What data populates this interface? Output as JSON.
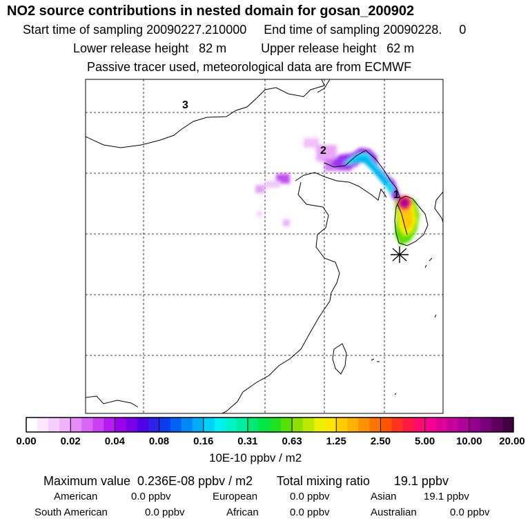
{
  "header": {
    "title": "NO2 source contributions in nested domain for gosan_200902",
    "sampling_line": "Start time of sampling 20090227.210000     End time of sampling 20090228.     0",
    "release_line": "Lower release height   82 m          Upper release height   62 m",
    "tracer_line": "Passive tracer used, meteorological data are from ECMWF"
  },
  "map": {
    "trajectory_labels": [
      "1",
      "2",
      "3"
    ],
    "receptor_marker": "asterisk-icon"
  },
  "colorbar": {
    "tick_labels": [
      "0.00",
      "0.02",
      "0.04",
      "0.08",
      "0.16",
      "0.31",
      "0.63",
      "1.25",
      "2.50",
      "5.00",
      "10.00",
      "20.00"
    ],
    "colors": [
      "#ffffff",
      "#fbe6fd",
      "#f6cdfb",
      "#f0b2f9",
      "#e58cf7",
      "#da66f5",
      "#cc3ff4",
      "#b81af2",
      "#9c00ef",
      "#7a00ec",
      "#5200ea",
      "#2e1fea",
      "#0a3bf0",
      "#0062f3",
      "#0089f6",
      "#00aef8",
      "#00d2fa",
      "#00f2f0",
      "#00f2c8",
      "#00eea0",
      "#00ea70",
      "#00e644",
      "#20e220",
      "#58e000",
      "#8ee000",
      "#bfe800",
      "#eef000",
      "#ffe600",
      "#ffcc00",
      "#ffb000",
      "#ff9200",
      "#ff7400",
      "#ff5400",
      "#ff3222",
      "#ff1a44",
      "#ff0a70",
      "#f70094",
      "#e0009a",
      "#c8009c",
      "#b0009c",
      "#96008e",
      "#7a0078",
      "#5e005e",
      "#420042"
    ],
    "units": "10E-10 ppbv / m2"
  },
  "summary": {
    "max_line": "Maximum value  0.236E-08 ppbv / m2       Total mixing ratio       19.1 ppbv",
    "regions": [
      {
        "name": "American",
        "value": "0.0 ppbv"
      },
      {
        "name": "European",
        "value": "0.0 ppbv"
      },
      {
        "name": "Asian",
        "value": "19.1 ppbv"
      },
      {
        "name": "South American",
        "value": "0.0 ppbv"
      },
      {
        "name": "African",
        "value": "0.0 ppbv"
      },
      {
        "name": "Australian",
        "value": "0.0 ppbv"
      }
    ]
  }
}
